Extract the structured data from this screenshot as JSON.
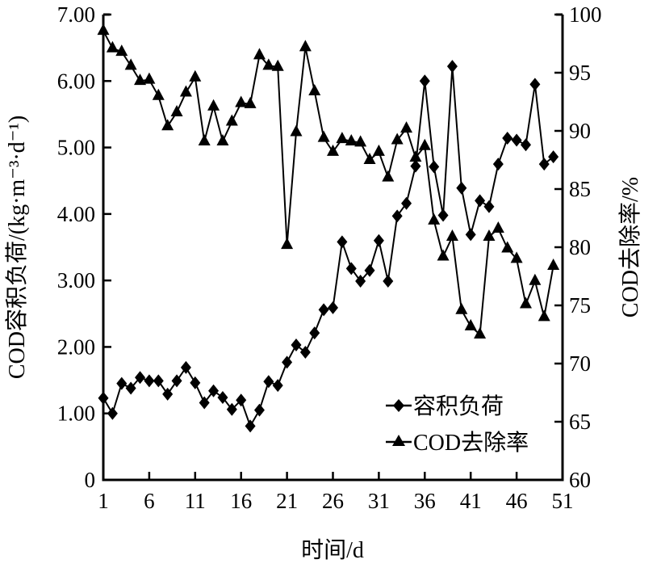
{
  "chart_data": {
    "type": "line",
    "xlabel": "时间/d",
    "ylabel_left": "COD容积负荷/(kg·m⁻³·d⁻¹)",
    "ylabel_right": "COD去除率/%",
    "xlim": [
      1,
      51
    ],
    "ylim_left": [
      0,
      7
    ],
    "ylim_right": [
      60,
      100
    ],
    "x_ticks": [
      "1",
      "6",
      "11",
      "16",
      "21",
      "26",
      "31",
      "36",
      "41",
      "46",
      "51"
    ],
    "y_left_ticks": [
      "0",
      "1.00",
      "2.00",
      "3.00",
      "4.00",
      "5.00",
      "6.00",
      "7.00"
    ],
    "y_right_ticks": [
      "60",
      "65",
      "70",
      "75",
      "80",
      "85",
      "90",
      "95",
      "100"
    ],
    "grid": false,
    "legend_position": "bottom-right",
    "x": [
      1,
      2,
      3,
      4,
      5,
      6,
      7,
      8,
      9,
      10,
      11,
      12,
      13,
      14,
      15,
      16,
      17,
      18,
      19,
      20,
      21,
      22,
      23,
      24,
      25,
      26,
      27,
      28,
      29,
      30,
      31,
      32,
      33,
      34,
      35,
      36,
      37,
      38,
      39,
      40,
      41,
      42,
      43,
      44,
      45,
      46,
      47,
      48,
      49,
      50
    ],
    "series": [
      {
        "name": "容积负荷",
        "axis": "left",
        "marker": "diamond",
        "values": [
          1.23,
          1.0,
          1.45,
          1.38,
          1.54,
          1.49,
          1.49,
          1.29,
          1.49,
          1.69,
          1.46,
          1.16,
          1.34,
          1.24,
          1.06,
          1.2,
          0.81,
          1.05,
          1.48,
          1.42,
          1.77,
          2.03,
          1.92,
          2.21,
          2.56,
          2.59,
          3.58,
          3.18,
          2.99,
          3.15,
          3.6,
          2.99,
          3.97,
          4.16,
          4.72,
          6.0,
          4.71,
          3.98,
          6.22,
          4.39,
          3.69,
          4.2,
          4.11,
          4.75,
          5.14,
          5.11,
          5.04,
          5.95,
          4.75,
          4.86
        ]
      },
      {
        "name": "COD去除率",
        "axis": "right",
        "marker": "triangle",
        "values": [
          98.6,
          97.1,
          96.8,
          95.6,
          94.3,
          94.4,
          93.0,
          90.4,
          91.6,
          93.3,
          94.6,
          89.1,
          92.1,
          89.1,
          90.8,
          92.4,
          92.3,
          96.5,
          95.6,
          95.5,
          80.2,
          89.9,
          97.2,
          93.4,
          89.4,
          88.2,
          89.3,
          89.1,
          89.0,
          87.5,
          88.2,
          86.0,
          89.2,
          90.2,
          87.7,
          88.7,
          82.3,
          79.2,
          80.9,
          74.6,
          73.2,
          72.5,
          80.9,
          81.6,
          79.9,
          79.0,
          75.1,
          77.1,
          74.0,
          78.4
        ]
      }
    ]
  }
}
